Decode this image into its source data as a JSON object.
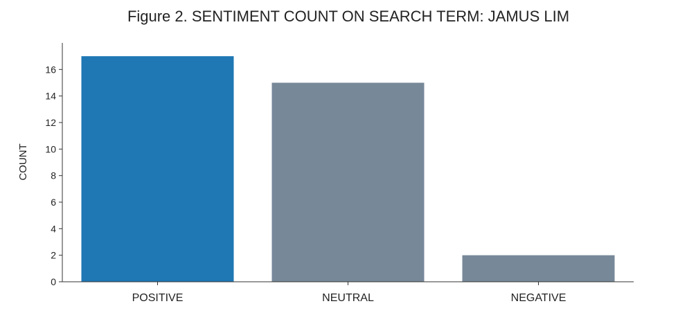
{
  "chart_data": {
    "type": "bar",
    "title": "Figure 2. SENTIMENT COUNT ON SEARCH TERM: JAMUS LIM",
    "xlabel": "",
    "ylabel": "COUNT",
    "categories": [
      "POSITIVE",
      "NEUTRAL",
      "NEGATIVE"
    ],
    "values": [
      17,
      15,
      2
    ],
    "bar_colors": [
      "#1f77b4",
      "#778899",
      "#778899"
    ],
    "ylim": [
      0,
      18
    ],
    "yticks": [
      0,
      2,
      4,
      6,
      8,
      10,
      12,
      14,
      16
    ],
    "grid": false,
    "legend": "none"
  }
}
